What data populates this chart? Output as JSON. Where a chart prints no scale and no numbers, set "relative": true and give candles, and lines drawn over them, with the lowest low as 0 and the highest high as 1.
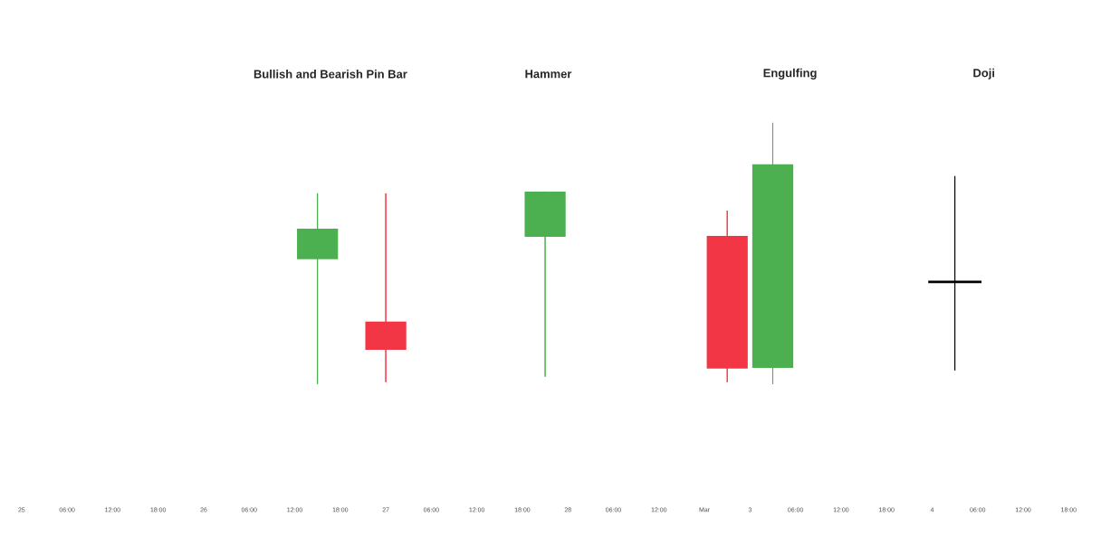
{
  "chart_data": {
    "type": "candlestick",
    "relative": true,
    "categories": [
      "25",
      null,
      "06:00",
      null,
      "12:00",
      null,
      "18:00",
      null,
      "26",
      null,
      "06:00",
      null,
      "12:00",
      null,
      "18:00",
      null,
      "27",
      null,
      "06:00",
      null,
      "12:00",
      null,
      "18:00",
      null,
      "28",
      null,
      "06:00",
      null,
      "12:00",
      null,
      "Mar",
      null,
      "3",
      null,
      "06:00",
      null,
      "12:00",
      null,
      "18:00",
      null,
      "4",
      null,
      "06:00",
      null,
      "12:00",
      null,
      "18:00",
      null
    ],
    "ohlc": [
      null,
      null,
      null,
      null,
      null,
      null,
      null,
      null,
      null,
      null,
      null,
      null,
      null,
      [
        0.478,
        0.73,
        0,
        0.595
      ],
      null,
      null,
      [
        0.239,
        0.73,
        0.007,
        0.131
      ],
      null,
      null,
      null,
      null,
      null,
      null,
      [
        0.564,
        0.737,
        0.028,
        0.737
      ],
      null,
      null,
      null,
      null,
      null,
      null,
      null,
      [
        0.567,
        0.664,
        0.007,
        0.059
      ],
      null,
      [
        0.062,
        1,
        0,
        0.841
      ],
      null,
      null,
      null,
      null,
      null,
      null,
      null,
      [
        0.391,
        0.796,
        0.052,
        0.391
      ],
      null,
      null,
      null,
      null,
      null,
      null
    ],
    "colors": [
      null,
      null,
      null,
      null,
      null,
      null,
      null,
      null,
      null,
      null,
      null,
      null,
      null,
      "#4caf50",
      null,
      null,
      "#f23645",
      null,
      null,
      null,
      null,
      null,
      null,
      "#4caf50",
      null,
      null,
      null,
      null,
      null,
      null,
      null,
      "#f23645",
      null,
      "#4caf50",
      null,
      null,
      null,
      null,
      null,
      null,
      null,
      "#000000",
      null,
      null,
      null,
      null,
      null,
      null
    ],
    "annotations": [
      "Bullish and Bearish Pin Bar",
      "Hammer",
      "Engulfing",
      "Doji"
    ]
  }
}
